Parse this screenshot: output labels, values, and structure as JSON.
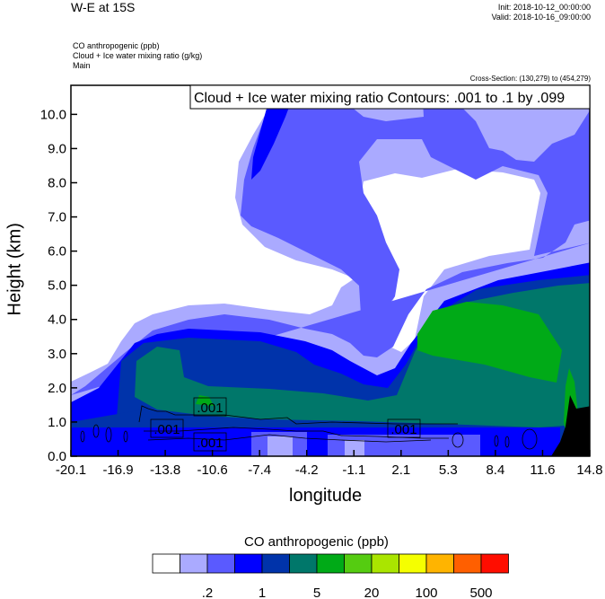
{
  "header": {
    "title": "W-E at 15S",
    "init": "Init: 2018-10-12_00:00:00",
    "valid": "Valid: 2018-10-16_09:00:00",
    "subtitles": [
      "CO anthropogenic   (ppb)",
      "Cloud + Ice water mixing ratio   (g/kg)",
      "Main"
    ],
    "cross_section": "Cross-Section: (130,279) to (454,279)"
  },
  "chart_data": {
    "type": "heatmap",
    "title": "W-E at 15S",
    "xlabel": "longitude",
    "ylabel": "Height (km)",
    "xlim": [
      -20.1,
      14.8
    ],
    "ylim": [
      0,
      10.85
    ],
    "x_ticks": [
      "-20.1",
      "-16.9",
      "-13.8",
      "-10.6",
      "-7.4",
      "-4.2",
      "-1.1",
      "2.1",
      "5.3",
      "8.4",
      "11.6",
      "14.8"
    ],
    "y_ticks": [
      "0.0",
      "1.0",
      "2.0",
      "3.0",
      "4.0",
      "5.0",
      "6.0",
      "7.0",
      "8.0",
      "9.0",
      "10.0"
    ],
    "y_tick_values": [
      0,
      1,
      2,
      3,
      4,
      5,
      6,
      7,
      8,
      9,
      10
    ],
    "contour_info": "Cloud + Ice water mixing ratio Contours: .001 to .1 by .099",
    "contour_labels": [
      ".001",
      ".001",
      ".001",
      ".001"
    ],
    "colorbar": {
      "title": "CO anthropogenic  (ppb)",
      "colors": [
        "#FFFFFF",
        "#AAAAFF",
        "#5A5AFF",
        "#0000FF",
        "#0033AA",
        "#00776A",
        "#00AA17",
        "#55CC11",
        "#AAE500",
        "#F5FF00",
        "#FFB400",
        "#FF5F00",
        "#FF0D00"
      ],
      "labels": [
        ".2",
        "1",
        "5",
        "20",
        "100",
        "500"
      ]
    }
  }
}
